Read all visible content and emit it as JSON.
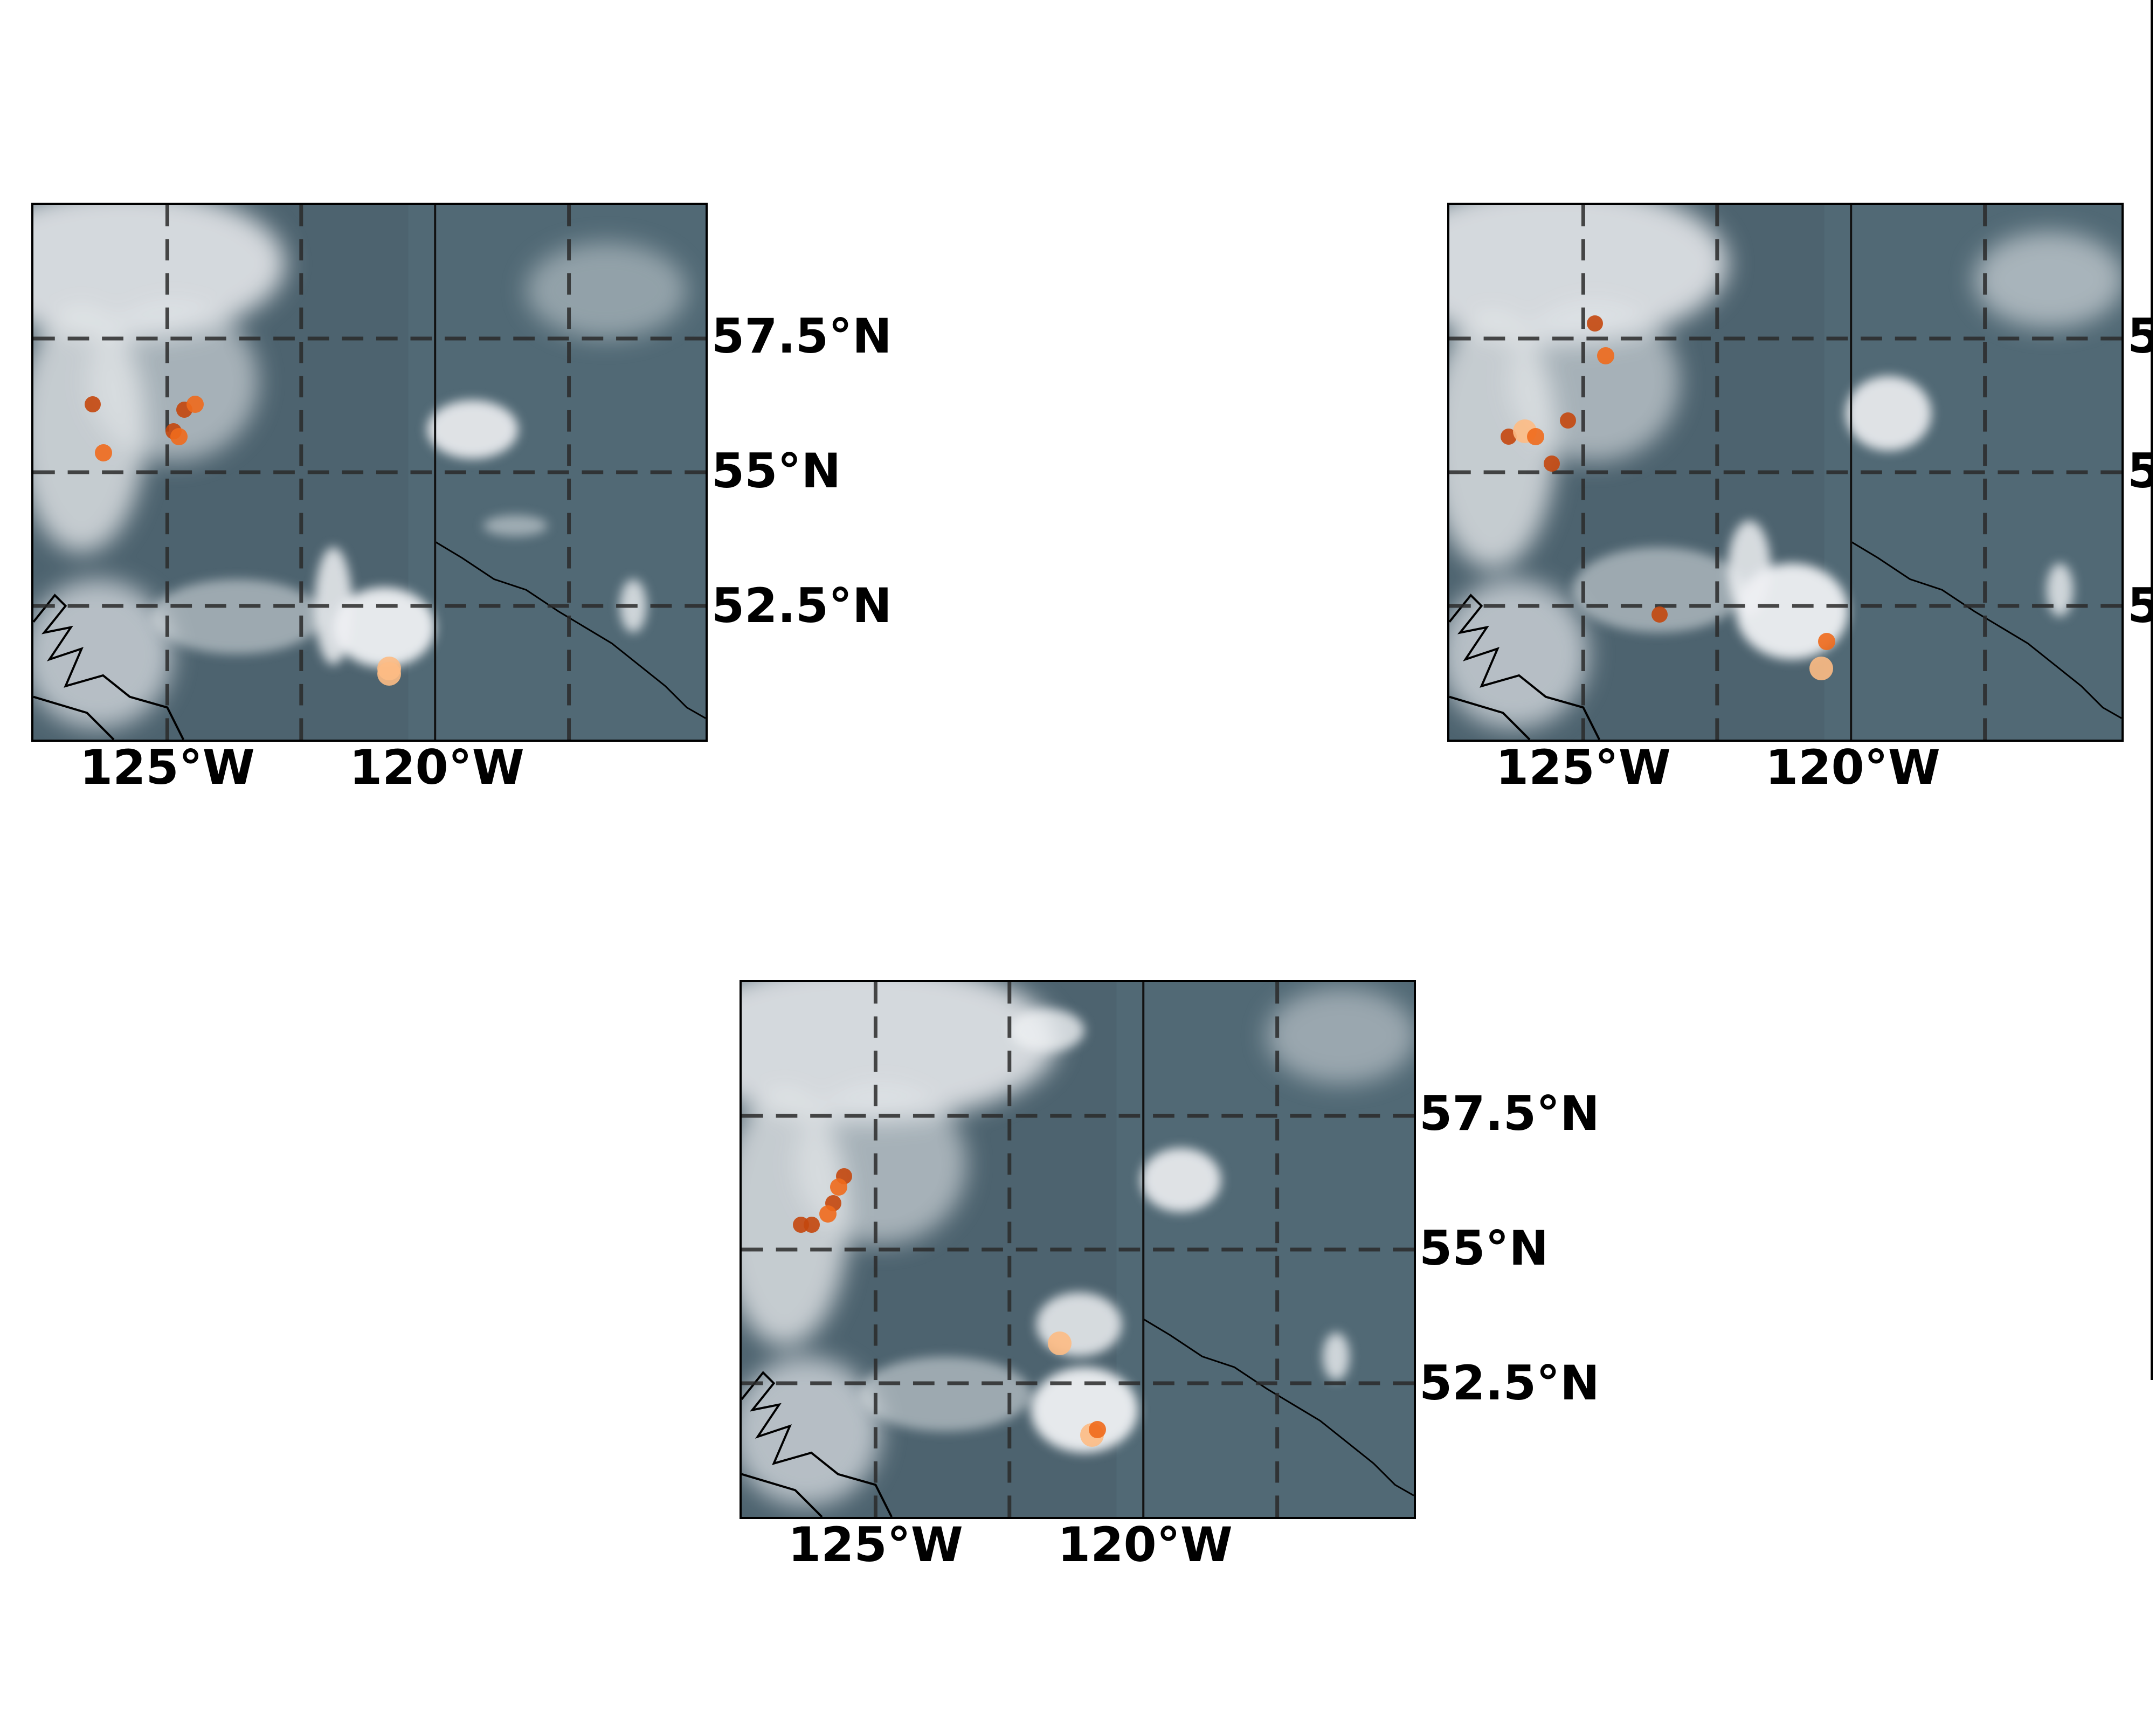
{
  "colors": {
    "ocean_land": "#4f6470",
    "cloud": "#e6e8ea",
    "grid": "#333333",
    "marker_dark": "#c4470d",
    "marker_mid": "#ef6a1c",
    "marker_light": "#fdbb84"
  },
  "axes": {
    "lon_ticks": [
      "125°W",
      "120°W"
    ],
    "lat_ticks": [
      "57.5°N",
      "55°N",
      "52.5°N"
    ]
  },
  "panels": [
    {
      "id": "top-left",
      "points": [
        {
          "lon": -126.4,
          "lat": 56.3,
          "shade": "dark"
        },
        {
          "lon": -126.2,
          "lat": 55.4,
          "shade": "mid"
        },
        {
          "lon": -124.7,
          "lat": 56.2,
          "shade": "dark"
        },
        {
          "lon": -124.5,
          "lat": 56.3,
          "shade": "mid"
        },
        {
          "lon": -124.9,
          "lat": 55.8,
          "shade": "dark"
        },
        {
          "lon": -124.8,
          "lat": 55.7,
          "shade": "mid"
        },
        {
          "lon": -120.9,
          "lat": 51.4,
          "shade": "light"
        },
        {
          "lon": -120.9,
          "lat": 51.3,
          "shade": "light"
        }
      ]
    },
    {
      "id": "top-right",
      "points": [
        {
          "lon": -124.8,
          "lat": 57.8,
          "shade": "dark"
        },
        {
          "lon": -124.6,
          "lat": 57.2,
          "shade": "mid"
        },
        {
          "lon": -126.4,
          "lat": 55.7,
          "shade": "dark"
        },
        {
          "lon": -126.1,
          "lat": 55.8,
          "shade": "light"
        },
        {
          "lon": -125.9,
          "lat": 55.7,
          "shade": "mid"
        },
        {
          "lon": -125.3,
          "lat": 56.0,
          "shade": "dark"
        },
        {
          "lon": -125.6,
          "lat": 55.2,
          "shade": "dark"
        },
        {
          "lon": -123.6,
          "lat": 52.4,
          "shade": "dark"
        },
        {
          "lon": -120.5,
          "lat": 51.9,
          "shade": "mid"
        },
        {
          "lon": -120.6,
          "lat": 51.4,
          "shade": "light"
        }
      ]
    },
    {
      "id": "bottom-center",
      "points": [
        {
          "lon": -125.6,
          "lat": 56.4,
          "shade": "dark"
        },
        {
          "lon": -125.7,
          "lat": 56.2,
          "shade": "mid"
        },
        {
          "lon": -125.8,
          "lat": 55.9,
          "shade": "dark"
        },
        {
          "lon": -125.9,
          "lat": 55.7,
          "shade": "mid"
        },
        {
          "lon": -126.4,
          "lat": 55.5,
          "shade": "dark"
        },
        {
          "lon": -126.2,
          "lat": 55.5,
          "shade": "dark"
        },
        {
          "lon": -121.6,
          "lat": 53.3,
          "shade": "light"
        },
        {
          "lon": -121.0,
          "lat": 51.6,
          "shade": "light"
        },
        {
          "lon": -120.9,
          "lat": 51.7,
          "shade": "mid"
        }
      ]
    }
  ]
}
